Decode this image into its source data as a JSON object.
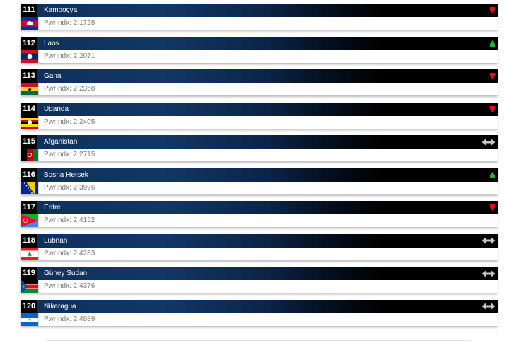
{
  "entries": [
    {
      "rank": "111",
      "country": "Kamboçya",
      "power_index": "PwrIndx: 2,1725",
      "trend": "down",
      "flag": "cambodia-flag"
    },
    {
      "rank": "112",
      "country": "Laos",
      "power_index": "PwrIndx: 2.2071",
      "trend": "up",
      "flag": "laos-flag"
    },
    {
      "rank": "113",
      "country": "Gana",
      "power_index": "PwrIndx: 2,2358",
      "trend": "down",
      "flag": "ghana-flag"
    },
    {
      "rank": "114",
      "country": "Uganda",
      "power_index": "PwrIndx: 2.2405",
      "trend": "down",
      "flag": "uganda-flag"
    },
    {
      "rank": "115",
      "country": "Afganistan",
      "power_index": "PwrIndx: 2,2715",
      "trend": "same",
      "flag": "afghanistan-flag"
    },
    {
      "rank": "116",
      "country": "Bosna Hersek",
      "power_index": "PwrIndx: 2,3996",
      "trend": "up",
      "flag": "bosnia-flag"
    },
    {
      "rank": "117",
      "country": "Eritre",
      "power_index": "PwrIndx: 2,4152",
      "trend": "down",
      "flag": "eritrea-flag"
    },
    {
      "rank": "118",
      "country": "Lübnan",
      "power_index": "PwrIndx: 2,4283",
      "trend": "same",
      "flag": "lebanon-flag"
    },
    {
      "rank": "119",
      "country": "Güney Sudan",
      "power_index": "PwrIndx: 2,4376",
      "trend": "same",
      "flag": "south-sudan-flag"
    },
    {
      "rank": "120",
      "country": "Nikaragua",
      "power_index": "PwrIndx: 2,4889",
      "trend": "same",
      "flag": "nicaragua-flag"
    }
  ],
  "colors": {
    "trend_up": "#1db33a",
    "trend_down": "#e3101c",
    "trend_same": "#c8c8c8"
  }
}
